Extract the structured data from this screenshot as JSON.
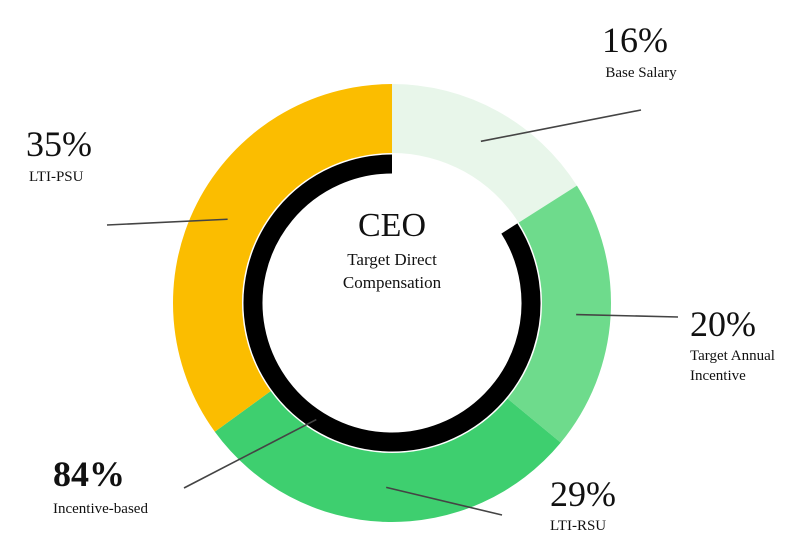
{
  "chart_data": {
    "type": "donut",
    "center_title": "CEO",
    "center_subtitle_lines": [
      "Target Direct",
      "Compensation"
    ],
    "slices": [
      {
        "label": "Base Salary",
        "label_lines": [
          "Base Salary"
        ],
        "value": 16,
        "value_label": "16%",
        "color": "#e8f6ea"
      },
      {
        "label": "Target Annual Incentive",
        "label_lines": [
          "Target Annual",
          "Incentive"
        ],
        "value": 20,
        "value_label": "20%",
        "color": "#6edb8c"
      },
      {
        "label": "LTI-RSU",
        "label_lines": [
          "LTI-RSU"
        ],
        "value": 29,
        "value_label": "29%",
        "color": "#3ecf6f"
      },
      {
        "label": "LTI-PSU",
        "label_lines": [
          "LTI-PSU"
        ],
        "value": 35,
        "value_label": "35%",
        "color": "#fbbd00"
      }
    ],
    "inner_arc": {
      "label": "Incentive-based",
      "value": 84,
      "value_label": "84%",
      "color": "#000000"
    }
  }
}
